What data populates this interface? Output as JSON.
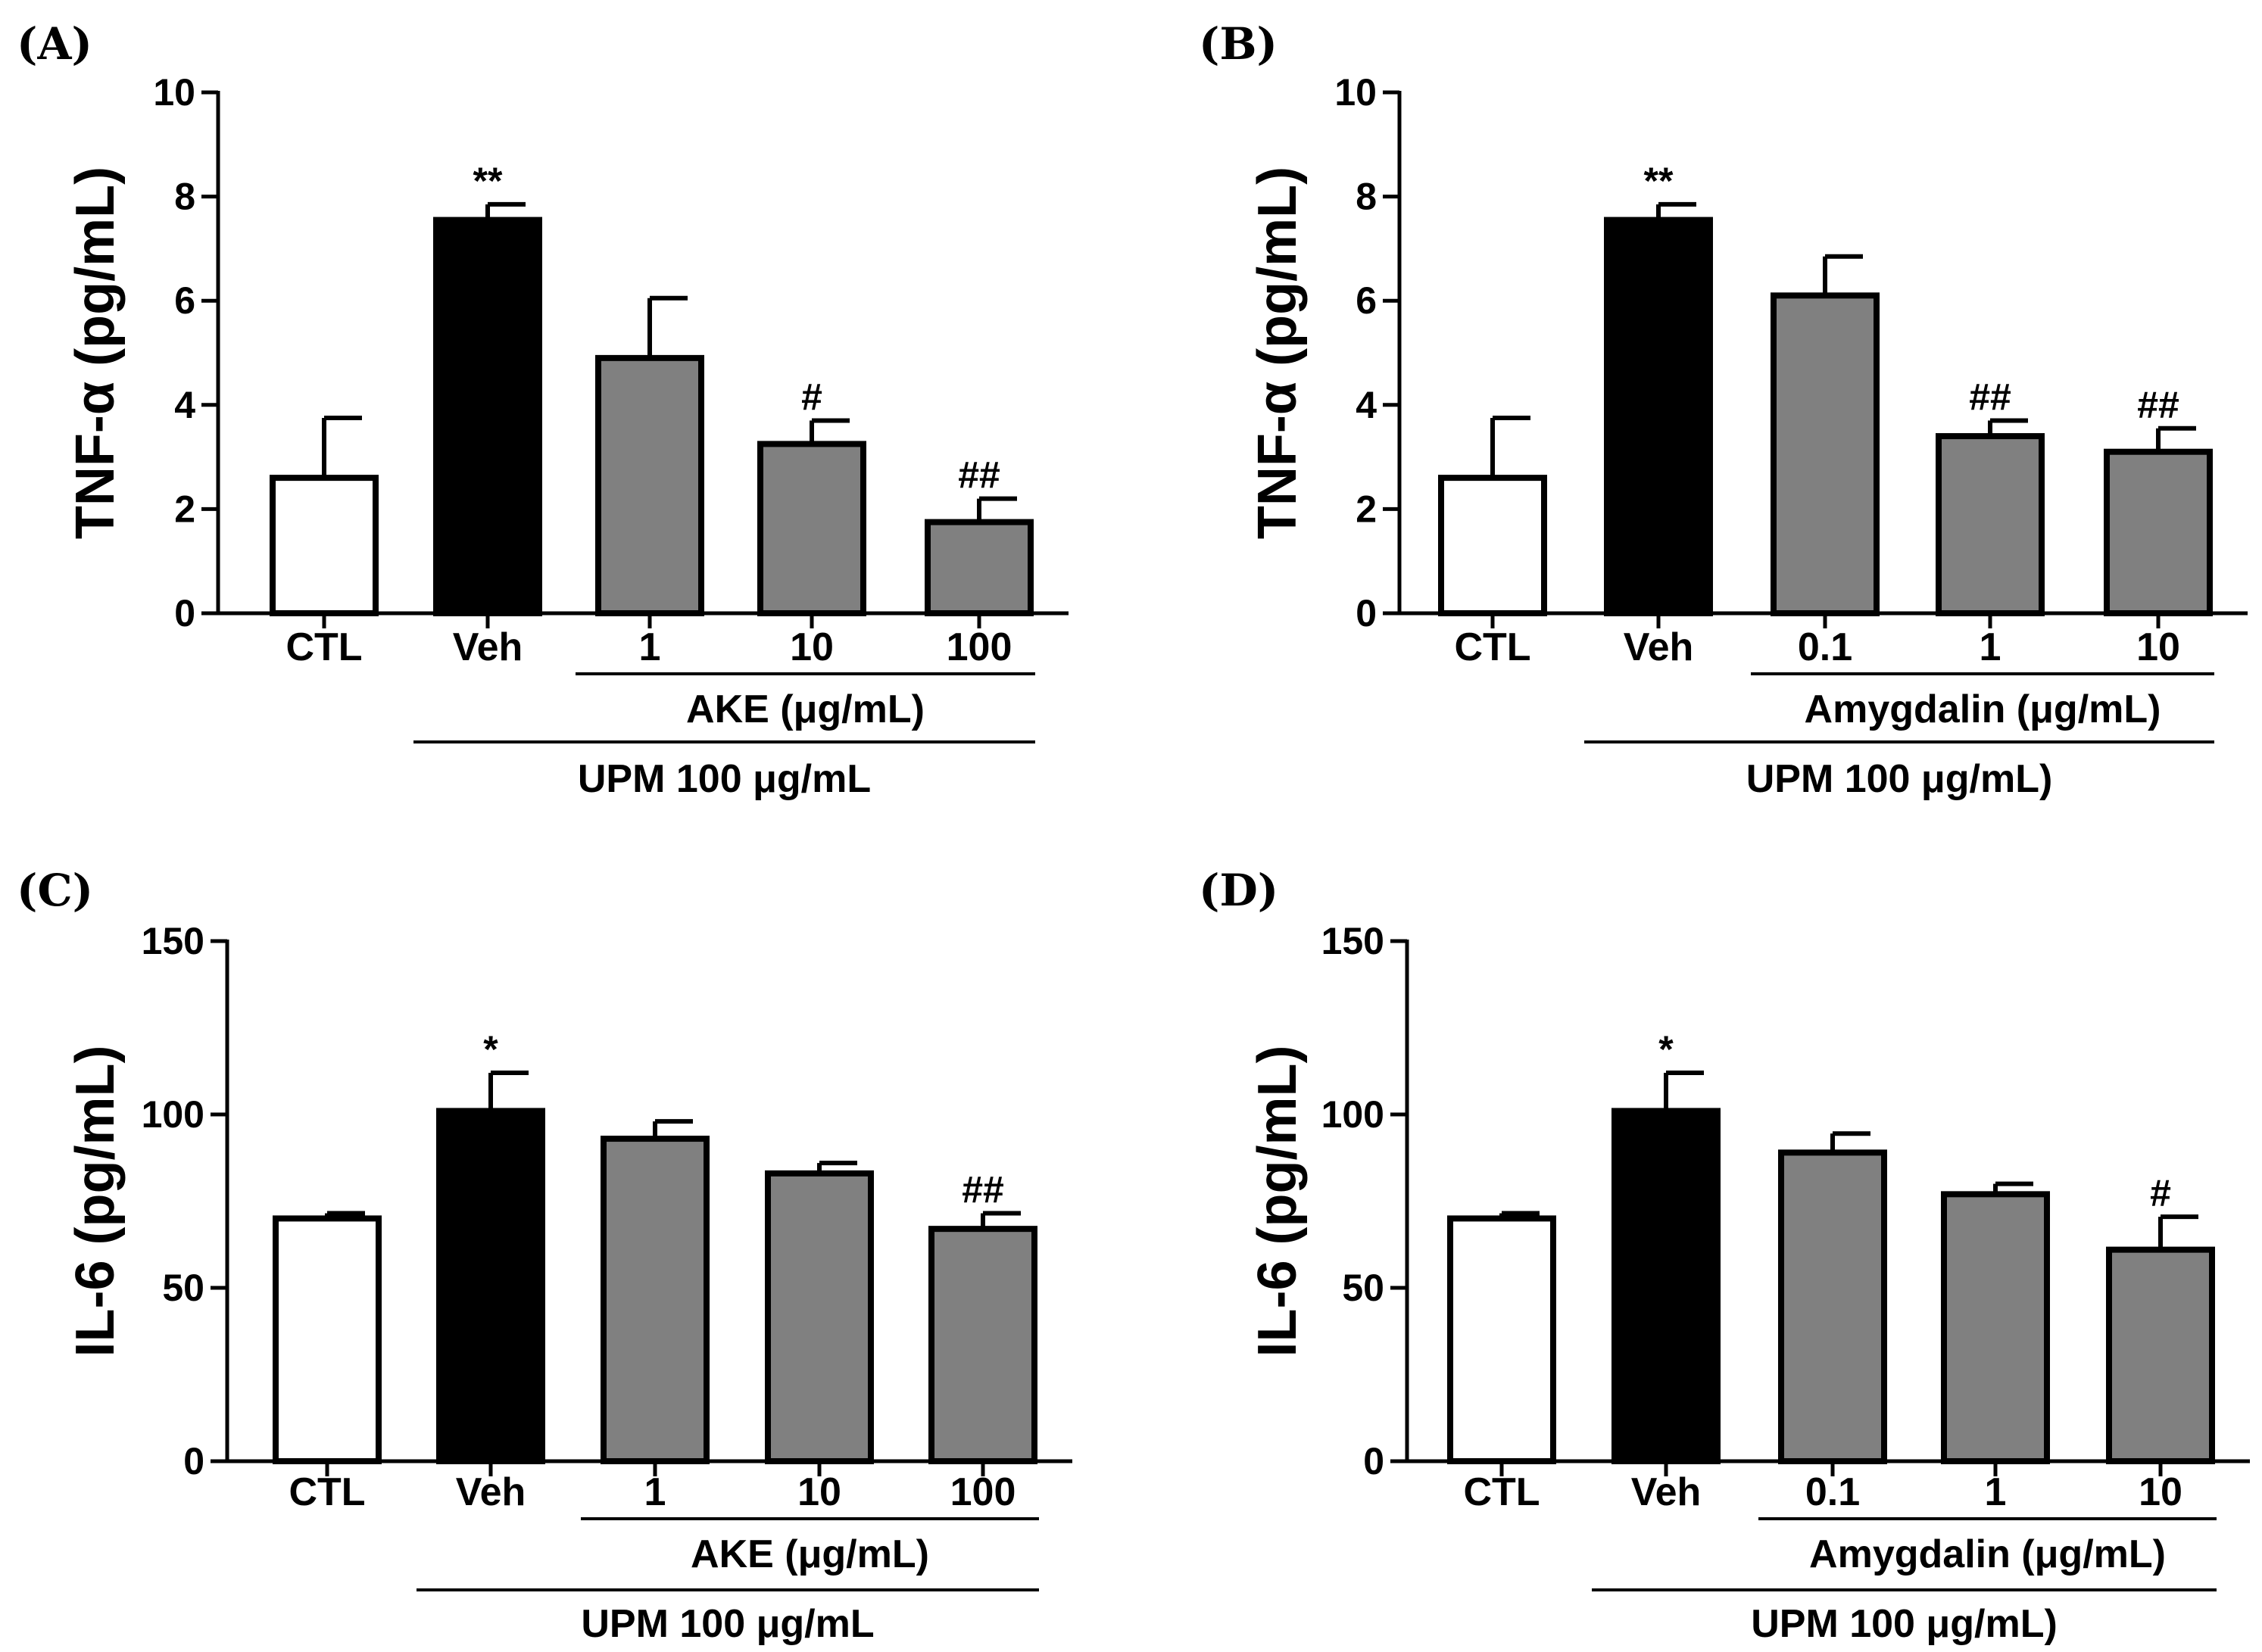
{
  "colors": {
    "axis": "#000000",
    "bar_ctl": "#ffffff",
    "bar_veh": "#000000",
    "bar_treated": "#808080",
    "bar_edge": "#000000"
  },
  "chart_data": [
    {
      "panel": "(A)",
      "type": "bar",
      "ylabel": "TNF-α (pg/mL)",
      "ylim": [
        0,
        10
      ],
      "yticks": [
        "0",
        "2",
        "4",
        "6",
        "8",
        "10"
      ],
      "categories": [
        "CTL",
        "Veh",
        "1",
        "10",
        "100"
      ],
      "values": [
        2.6,
        7.55,
        4.9,
        3.25,
        1.75
      ],
      "errors": [
        1.15,
        0.3,
        1.15,
        0.45,
        0.45
      ],
      "fills": [
        "bar_ctl",
        "bar_veh",
        "bar_treated",
        "bar_treated",
        "bar_treated"
      ],
      "significance": [
        "",
        "**",
        "",
        "#",
        "##"
      ],
      "treatment_label": "AKE (μg/mL)",
      "treatment_span": [
        2,
        4
      ],
      "upm_label": "UPM 100 μg/mL",
      "upm_span": [
        1,
        4
      ]
    },
    {
      "panel": "(B)",
      "type": "bar",
      "ylabel": "TNF-α (pg/mL)",
      "ylim": [
        0,
        10
      ],
      "yticks": [
        "0",
        "2",
        "4",
        "6",
        "8",
        "10"
      ],
      "categories": [
        "CTL",
        "Veh",
        "0.1",
        "1",
        "10"
      ],
      "values": [
        2.6,
        7.55,
        6.1,
        3.4,
        3.1
      ],
      "errors": [
        1.15,
        0.3,
        0.75,
        0.3,
        0.45
      ],
      "fills": [
        "bar_ctl",
        "bar_veh",
        "bar_treated",
        "bar_treated",
        "bar_treated"
      ],
      "significance": [
        "",
        "**",
        "",
        "##",
        "##"
      ],
      "treatment_label": "Amygdalin (μg/mL)",
      "treatment_span": [
        2,
        4
      ],
      "upm_label": "UPM 100 μg/mL)",
      "upm_span": [
        1,
        4
      ]
    },
    {
      "panel": "(C)",
      "type": "bar",
      "ylabel": "IL-6 (pg/mL)",
      "ylim": [
        0,
        150
      ],
      "yticks": [
        "0",
        "50",
        "100",
        "150"
      ],
      "categories": [
        "CTL",
        "Veh",
        "1",
        "10",
        "100"
      ],
      "values": [
        70,
        101,
        93,
        83,
        67
      ],
      "errors": [
        1.5,
        11,
        5,
        3,
        4.5
      ],
      "fills": [
        "bar_ctl",
        "bar_veh",
        "bar_treated",
        "bar_treated",
        "bar_treated"
      ],
      "significance": [
        "",
        "*",
        "",
        "",
        "##"
      ],
      "treatment_label": "AKE (μg/mL)",
      "treatment_span": [
        2,
        4
      ],
      "upm_label": "UPM 100 μg/mL",
      "upm_span": [
        1,
        4
      ]
    },
    {
      "panel": "(D)",
      "type": "bar",
      "ylabel": "IL-6 (pg/mL)",
      "ylim": [
        0,
        150
      ],
      "yticks": [
        "0",
        "50",
        "100",
        "150"
      ],
      "categories": [
        "CTL",
        "Veh",
        "0.1",
        "1",
        "10"
      ],
      "values": [
        70,
        101,
        89,
        77,
        61
      ],
      "errors": [
        1.5,
        11,
        5.5,
        3,
        9.5
      ],
      "fills": [
        "bar_ctl",
        "bar_veh",
        "bar_treated",
        "bar_treated",
        "bar_treated"
      ],
      "significance": [
        "",
        "*",
        "",
        "",
        "#"
      ],
      "treatment_label": "Amygdalin (μg/mL)",
      "treatment_span": [
        2,
        4
      ],
      "upm_label": "UPM 100 μg/mL)",
      "upm_span": [
        1,
        4
      ]
    }
  ]
}
